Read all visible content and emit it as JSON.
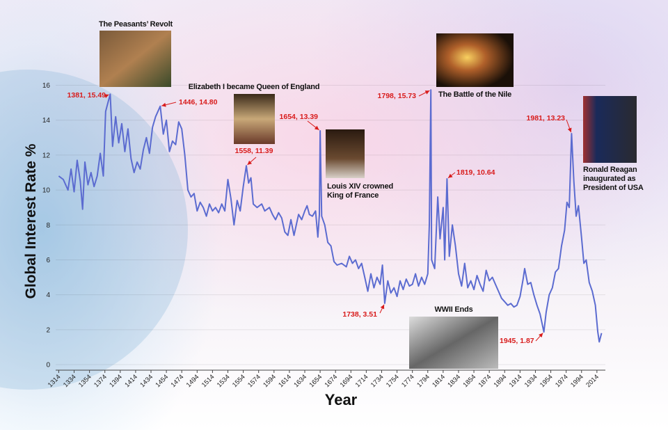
{
  "chart_data": {
    "type": "line",
    "x_label": "Year",
    "y_label": "Global Interest Rate %",
    "color": "#5b6bd0",
    "grid": true,
    "xlim": [
      1310,
      2025
    ],
    "ylim": [
      0,
      16.5
    ],
    "xticks": [
      1314,
      1334,
      1354,
      1374,
      1394,
      1414,
      1434,
      1454,
      1474,
      1494,
      1514,
      1534,
      1554,
      1574,
      1594,
      1614,
      1634,
      1654,
      1674,
      1694,
      1714,
      1734,
      1754,
      1774,
      1794,
      1814,
      1834,
      1854,
      1874,
      1894,
      1914,
      1934,
      1954,
      1974,
      1994,
      2014
    ],
    "yticks": [
      0,
      2,
      4,
      6,
      8,
      10,
      12,
      14,
      16
    ],
    "x": [
      1314,
      1320,
      1326,
      1330,
      1334,
      1338,
      1342,
      1345,
      1348,
      1352,
      1356,
      1360,
      1364,
      1368,
      1372,
      1375,
      1378,
      1381,
      1384,
      1388,
      1392,
      1396,
      1400,
      1404,
      1408,
      1412,
      1416,
      1420,
      1424,
      1428,
      1432,
      1436,
      1440,
      1446,
      1450,
      1454,
      1458,
      1462,
      1466,
      1470,
      1474,
      1478,
      1482,
      1486,
      1490,
      1494,
      1498,
      1502,
      1506,
      1510,
      1514,
      1518,
      1522,
      1526,
      1530,
      1534,
      1538,
      1542,
      1546,
      1550,
      1554,
      1558,
      1561,
      1564,
      1567,
      1572,
      1578,
      1582,
      1588,
      1592,
      1596,
      1600,
      1604,
      1608,
      1612,
      1616,
      1620,
      1626,
      1630,
      1634,
      1637,
      1640,
      1644,
      1648,
      1651,
      1653,
      1654,
      1656,
      1660,
      1664,
      1668,
      1672,
      1676,
      1682,
      1688,
      1692,
      1696,
      1700,
      1704,
      1708,
      1712,
      1716,
      1720,
      1724,
      1728,
      1732,
      1735,
      1738,
      1742,
      1746,
      1750,
      1754,
      1758,
      1762,
      1766,
      1770,
      1774,
      1778,
      1782,
      1786,
      1790,
      1794,
      1796,
      1798,
      1799,
      1803,
      1807,
      1810,
      1814,
      1816,
      1819,
      1822,
      1826,
      1830,
      1834,
      1838,
      1842,
      1846,
      1850,
      1854,
      1858,
      1862,
      1866,
      1870,
      1874,
      1878,
      1882,
      1886,
      1890,
      1894,
      1898,
      1902,
      1906,
      1910,
      1914,
      1918,
      1920,
      1924,
      1928,
      1932,
      1936,
      1940,
      1945,
      1948,
      1952,
      1956,
      1960,
      1964,
      1968,
      1972,
      1975,
      1978,
      1981,
      1984,
      1987,
      1990,
      1994,
      1997,
      2000,
      2004,
      2008,
      2012,
      2015,
      2017,
      2020
    ],
    "values": [
      10.8,
      10.6,
      10.0,
      11.2,
      9.9,
      11.7,
      10.5,
      8.9,
      11.6,
      10.3,
      11.0,
      10.2,
      10.8,
      12.1,
      10.8,
      14.5,
      15.0,
      15.49,
      12.5,
      14.2,
      12.7,
      13.8,
      12.2,
      13.5,
      11.8,
      11.0,
      11.6,
      11.2,
      12.3,
      13.0,
      12.1,
      13.6,
      14.2,
      14.8,
      13.2,
      14.0,
      12.2,
      12.8,
      12.6,
      13.9,
      13.5,
      12.0,
      10.0,
      9.6,
      9.8,
      8.8,
      9.3,
      9.0,
      8.5,
      9.2,
      8.8,
      9.0,
      8.7,
      9.2,
      8.8,
      10.6,
      9.5,
      8.0,
      9.4,
      8.8,
      10.2,
      11.39,
      10.4,
      10.7,
      9.2,
      9.0,
      9.2,
      8.8,
      9.0,
      8.6,
      8.3,
      8.7,
      8.4,
      7.6,
      7.4,
      8.3,
      7.4,
      8.6,
      8.3,
      8.8,
      9.1,
      8.6,
      8.5,
      8.8,
      7.3,
      8.6,
      13.39,
      8.5,
      8.0,
      7.0,
      6.8,
      5.9,
      5.7,
      5.8,
      5.6,
      6.2,
      5.8,
      6.0,
      5.5,
      5.8,
      5.0,
      4.2,
      5.2,
      4.4,
      5.0,
      4.6,
      5.7,
      3.51,
      4.8,
      4.1,
      4.4,
      3.9,
      4.8,
      4.3,
      4.9,
      4.5,
      4.6,
      5.2,
      4.5,
      5.0,
      4.6,
      5.2,
      8.0,
      15.73,
      6.0,
      5.5,
      9.6,
      7.2,
      9.0,
      6.0,
      10.64,
      6.2,
      8.0,
      6.8,
      5.2,
      4.5,
      5.8,
      4.4,
      4.8,
      4.3,
      5.1,
      4.6,
      4.2,
      5.4,
      4.8,
      5.0,
      4.6,
      4.2,
      3.8,
      3.6,
      3.4,
      3.5,
      3.3,
      3.4,
      3.9,
      4.9,
      5.5,
      4.6,
      4.7,
      4.0,
      3.4,
      2.9,
      1.87,
      3.0,
      4.0,
      4.4,
      5.3,
      5.5,
      6.8,
      7.7,
      9.3,
      9.0,
      13.23,
      10.5,
      8.5,
      9.1,
      7.3,
      5.8,
      6.0,
      4.7,
      4.2,
      3.4,
      1.9,
      1.3,
      1.8
    ],
    "annotations": [
      {
        "text": "1381, 15.49",
        "x": 1381,
        "y": 15.49
      },
      {
        "text": "1446, 14.80",
        "x": 1446,
        "y": 14.8
      },
      {
        "text": "1558, 11.39",
        "x": 1558,
        "y": 11.39
      },
      {
        "text": "1654, 13.39",
        "x": 1654,
        "y": 13.39
      },
      {
        "text": "1798, 15.73",
        "x": 1798,
        "y": 15.73
      },
      {
        "text": "1819, 10.64",
        "x": 1819,
        "y": 10.64
      },
      {
        "text": "1738, 3.51",
        "x": 1738,
        "y": 3.51
      },
      {
        "text": "1945, 1.87",
        "x": 1945,
        "y": 1.87
      },
      {
        "text": "1981, 13.23",
        "x": 1981,
        "y": 13.23
      }
    ],
    "events": [
      {
        "lines": [
          "The Peasants’ Revolt"
        ]
      },
      {
        "lines": [
          "Elizabeth I became Queen of England"
        ]
      },
      {
        "lines": [
          "Louis XIV crowned",
          "King of France"
        ]
      },
      {
        "lines": [
          "The Battle of the Nile"
        ]
      },
      {
        "lines": [
          "WWII Ends"
        ]
      },
      {
        "lines": [
          "Ronald Reagan",
          "inaugurated as",
          "President of USA"
        ]
      }
    ]
  }
}
